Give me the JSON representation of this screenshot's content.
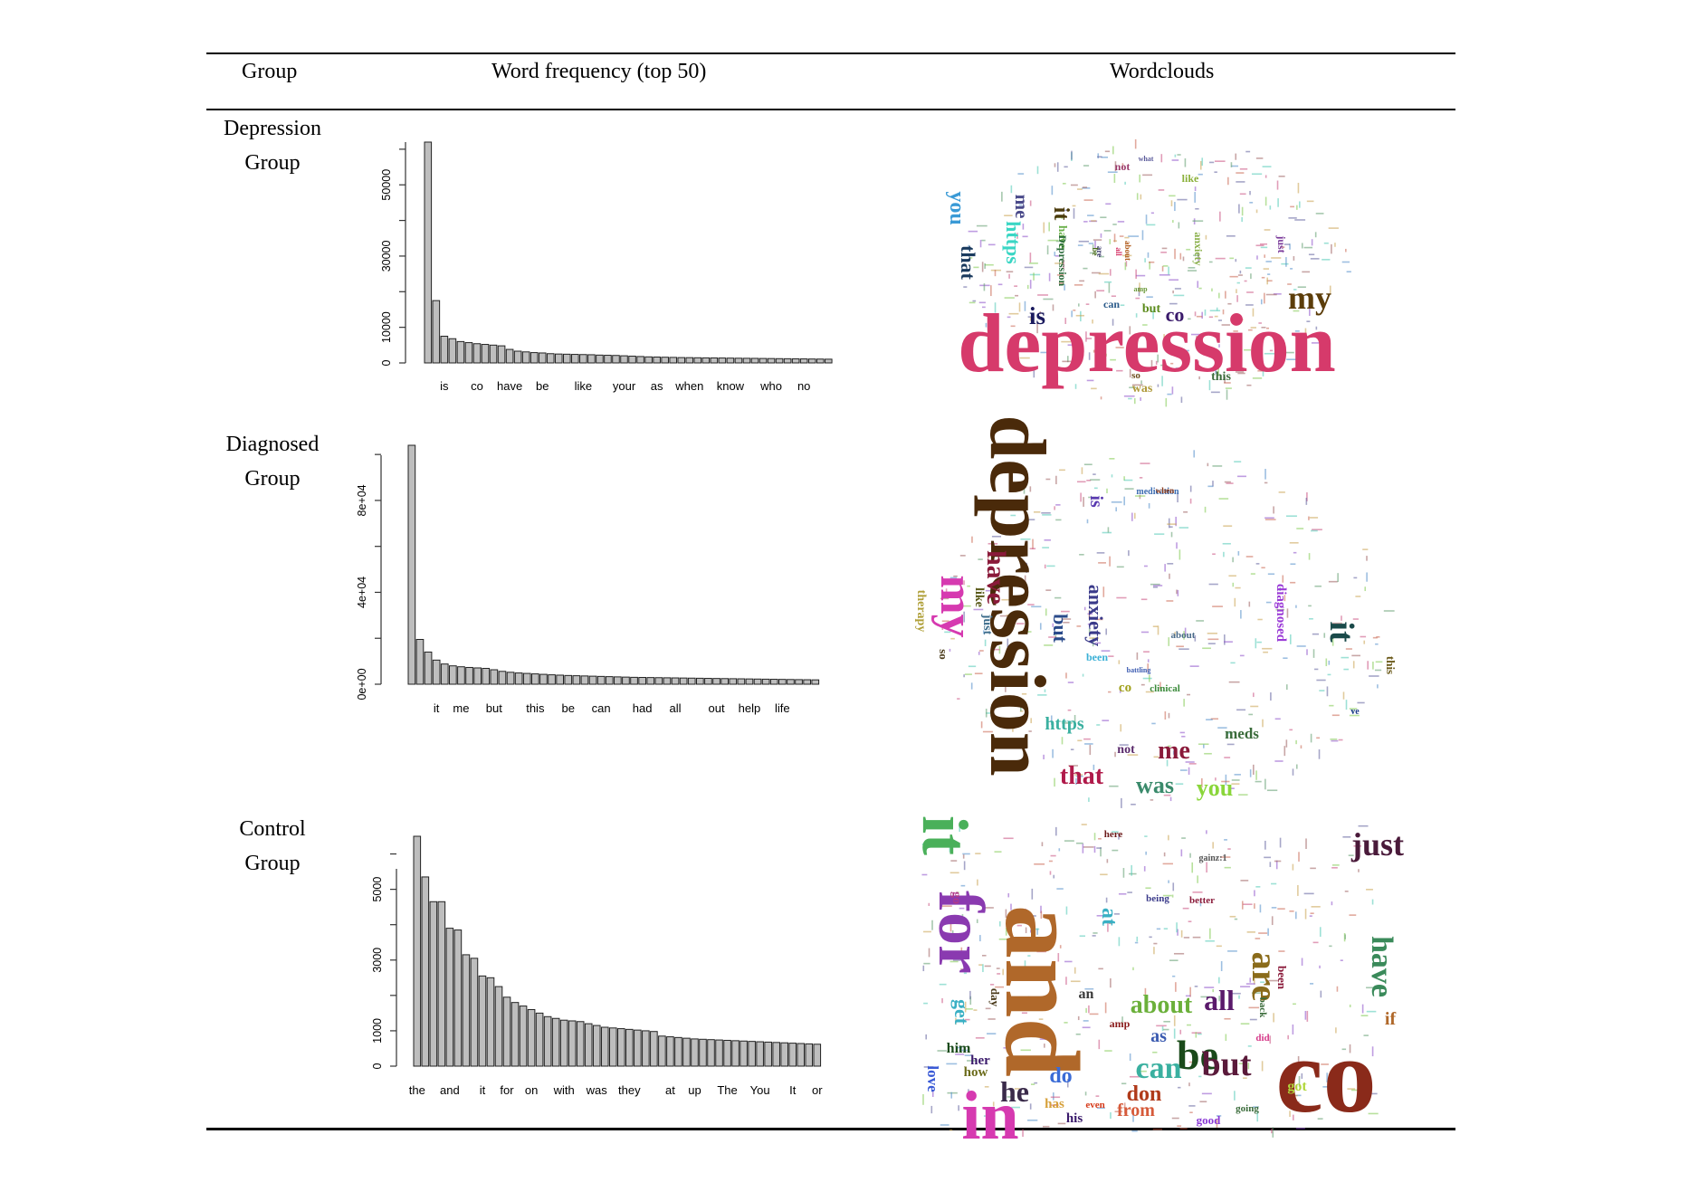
{
  "table": {
    "headers": {
      "group": "Group",
      "freq": "Word frequency (top 50)",
      "cloud": "Wordclouds"
    },
    "rows": [
      {
        "group_line1": "Depression",
        "group_line2": "Group"
      },
      {
        "group_line1": "Diagnosed",
        "group_line2": "Group"
      },
      {
        "group_line1": "Control",
        "group_line2": "Group"
      }
    ]
  },
  "chart_data": [
    {
      "type": "bar",
      "title": "",
      "xlabel": "",
      "ylabel": "",
      "ylim": [
        0,
        62000
      ],
      "yticks": [
        0,
        10000,
        30000,
        50000
      ],
      "ytick_labels": [
        "0",
        "10000",
        "30000",
        "50000"
      ],
      "xtick_labels": [
        {
          "index": 2,
          "label": "is"
        },
        {
          "index": 6,
          "label": "co"
        },
        {
          "index": 10,
          "label": "have"
        },
        {
          "index": 14,
          "label": "be"
        },
        {
          "index": 19,
          "label": "like"
        },
        {
          "index": 24,
          "label": "your"
        },
        {
          "index": 28,
          "label": "as"
        },
        {
          "index": 32,
          "label": "when"
        },
        {
          "index": 37,
          "label": "know"
        },
        {
          "index": 42,
          "label": "who"
        },
        {
          "index": 46,
          "label": "no"
        }
      ],
      "values": [
        62000,
        17500,
        7500,
        6800,
        6000,
        5700,
        5400,
        5200,
        5000,
        4800,
        3800,
        3300,
        3100,
        2900,
        2800,
        2600,
        2500,
        2450,
        2400,
        2350,
        2300,
        2200,
        2150,
        2100,
        2000,
        1900,
        1800,
        1700,
        1650,
        1600,
        1550,
        1500,
        1480,
        1450,
        1420,
        1400,
        1380,
        1350,
        1320,
        1300,
        1280,
        1250,
        1230,
        1200,
        1180,
        1150,
        1130,
        1100,
        1080,
        1050
      ]
    },
    {
      "type": "bar",
      "title": "",
      "xlabel": "",
      "ylabel": "",
      "ylim": [
        0,
        104000
      ],
      "yticks": [
        0,
        40000,
        80000
      ],
      "ytick_labels": [
        "0e+00",
        "4e+04",
        "8e+04"
      ],
      "xtick_labels": [
        {
          "index": 3,
          "label": "it"
        },
        {
          "index": 6,
          "label": "me"
        },
        {
          "index": 10,
          "label": "but"
        },
        {
          "index": 15,
          "label": "this"
        },
        {
          "index": 19,
          "label": "be"
        },
        {
          "index": 23,
          "label": "can"
        },
        {
          "index": 28,
          "label": "had"
        },
        {
          "index": 32,
          "label": "all"
        },
        {
          "index": 37,
          "label": "out"
        },
        {
          "index": 41,
          "label": "help"
        },
        {
          "index": 45,
          "label": "life"
        }
      ],
      "values": [
        104000,
        19500,
        14000,
        10500,
        8800,
        8000,
        7600,
        7300,
        7100,
        6900,
        6300,
        5600,
        5200,
        4900,
        4700,
        4500,
        4300,
        4100,
        3950,
        3800,
        3700,
        3600,
        3500,
        3400,
        3300,
        3200,
        3100,
        3000,
        2950,
        2900,
        2850,
        2800,
        2750,
        2700,
        2650,
        2600,
        2550,
        2500,
        2450,
        2400,
        2350,
        2300,
        2250,
        2200,
        2150,
        2100,
        2050,
        2000,
        1950,
        1900
      ]
    },
    {
      "type": "bar",
      "title": "",
      "xlabel": "",
      "ylabel": "",
      "ylim": [
        0,
        6500
      ],
      "yticks": [
        0,
        1000,
        3000,
        5000
      ],
      "ytick_labels": [
        "0",
        "1000",
        "3000",
        "5000"
      ],
      "xtick_labels": [
        {
          "index": 0,
          "label": "the"
        },
        {
          "index": 4,
          "label": "and"
        },
        {
          "index": 8,
          "label": "it"
        },
        {
          "index": 11,
          "label": "for"
        },
        {
          "index": 14,
          "label": "on"
        },
        {
          "index": 18,
          "label": "with"
        },
        {
          "index": 22,
          "label": "was"
        },
        {
          "index": 26,
          "label": "they"
        },
        {
          "index": 31,
          "label": "at"
        },
        {
          "index": 34,
          "label": "up"
        },
        {
          "index": 38,
          "label": "The"
        },
        {
          "index": 42,
          "label": "You"
        },
        {
          "index": 46,
          "label": "It"
        },
        {
          "index": 49,
          "label": "or"
        }
      ],
      "values": [
        6500,
        5350,
        4650,
        4650,
        3900,
        3850,
        3150,
        3050,
        2550,
        2500,
        2250,
        1950,
        1800,
        1700,
        1600,
        1500,
        1400,
        1350,
        1300,
        1280,
        1260,
        1200,
        1150,
        1100,
        1080,
        1060,
        1040,
        1020,
        1000,
        980,
        850,
        830,
        810,
        790,
        770,
        760,
        750,
        740,
        730,
        720,
        710,
        700,
        690,
        680,
        670,
        660,
        650,
        640,
        630,
        620
      ]
    }
  ],
  "wordclouds": [
    {
      "words": [
        {
          "text": "depression",
          "color": "#d63a6b"
        },
        {
          "text": "my",
          "color": "#5c3d0a"
        },
        {
          "text": "is",
          "color": "#1a1a5e"
        },
        {
          "text": "co",
          "color": "#3a1a6b"
        },
        {
          "text": "it",
          "color": "#4a3a0a"
        },
        {
          "text": "you",
          "color": "#3a9ad6"
        },
        {
          "text": "that",
          "color": "#1a3a5e"
        },
        {
          "text": "me",
          "color": "#4a4a8a"
        },
        {
          "text": "https",
          "color": "#3ad6c4"
        },
        {
          "text": "have",
          "color": "#6ab04a"
        },
        {
          "text": "Depression",
          "color": "#2a6b3a"
        },
        {
          "text": "anxiety",
          "color": "#8ab04a"
        },
        {
          "text": "just",
          "color": "#7a3a9a"
        },
        {
          "text": "not",
          "color": "#9a3a6b"
        },
        {
          "text": "like",
          "color": "#8ab03a"
        },
        {
          "text": "but",
          "color": "#5a8a1a"
        },
        {
          "text": "can",
          "color": "#2a5a8a"
        },
        {
          "text": "this",
          "color": "#3a6b3a"
        },
        {
          "text": "was",
          "color": "#b09a3a"
        },
        {
          "text": "so",
          "color": "#6b4a1a"
        },
        {
          "text": "are",
          "color": "#3a3a6b"
        },
        {
          "text": "all",
          "color": "#d63a6b"
        },
        {
          "text": "about",
          "color": "#b05a1a"
        },
        {
          "text": "what",
          "color": "#5a5a9a"
        },
        {
          "text": "amp",
          "color": "#6b9a3a"
        },
        {
          "text": "be",
          "color": "#4a6b1a"
        }
      ]
    },
    {
      "words": [
        {
          "text": "depression",
          "color": "#4a2a0a"
        },
        {
          "text": "my",
          "color": "#d63ab0"
        },
        {
          "text": "it",
          "color": "#1a4a4a"
        },
        {
          "text": "have",
          "color": "#8a1a3a"
        },
        {
          "text": "anxiety",
          "color": "#3a3a8a"
        },
        {
          "text": "but",
          "color": "#2a4a8a"
        },
        {
          "text": "is",
          "color": "#5a3ab0"
        },
        {
          "text": "me",
          "color": "#8a1a3a"
        },
        {
          "text": "that",
          "color": "#b01a4a"
        },
        {
          "text": "was",
          "color": "#3a8a6b"
        },
        {
          "text": "you",
          "color": "#8ad63a"
        },
        {
          "text": "https",
          "color": "#3ab0a0"
        },
        {
          "text": "meds",
          "color": "#3a6b3a"
        },
        {
          "text": "diagnosed",
          "color": "#9a3ad6"
        },
        {
          "text": "therapy",
          "color": "#b0a03a"
        },
        {
          "text": "like",
          "color": "#5a5a1a"
        },
        {
          "text": "just",
          "color": "#3a6b8a"
        },
        {
          "text": "so",
          "color": "#4a3a1a"
        },
        {
          "text": "been",
          "color": "#3ab0d6"
        },
        {
          "text": "about",
          "color": "#4a6b8a"
        },
        {
          "text": "co",
          "color": "#a0a01a"
        },
        {
          "text": "clinical",
          "color": "#3a8a3a"
        },
        {
          "text": "medication",
          "color": "#3a6bb0"
        },
        {
          "text": "not",
          "color": "#5a2a6b"
        },
        {
          "text": "this",
          "color": "#6b5a1a"
        },
        {
          "text": "when",
          "color": "#8a3a1a"
        },
        {
          "text": "battling",
          "color": "#3a5ab0"
        },
        {
          "text": "ve",
          "color": "#1a3a8a"
        }
      ]
    },
    {
      "words": [
        {
          "text": "and",
          "color": "#b0682a"
        },
        {
          "text": "co",
          "color": "#8a2a1a"
        },
        {
          "text": "it",
          "color": "#4ab05a"
        },
        {
          "text": "for",
          "color": "#8a3ab0"
        },
        {
          "text": "in",
          "color": "#d63ab0"
        },
        {
          "text": "just",
          "color": "#4a1a3a"
        },
        {
          "text": "have",
          "color": "#3a8a5a"
        },
        {
          "text": "are",
          "color": "#8a6b1a"
        },
        {
          "text": "be",
          "color": "#1a4a1a"
        },
        {
          "text": "can",
          "color": "#3ab0a0"
        },
        {
          "text": "but",
          "color": "#5a1a3a"
        },
        {
          "text": "all",
          "color": "#5a1a6b"
        },
        {
          "text": "about",
          "color": "#6bb03a"
        },
        {
          "text": "he",
          "color": "#3a2a4a"
        },
        {
          "text": "do",
          "color": "#3a6bd6"
        },
        {
          "text": "don",
          "color": "#b03a1a"
        },
        {
          "text": "from",
          "color": "#d65a3a"
        },
        {
          "text": "as",
          "color": "#3a5ab0"
        },
        {
          "text": "at",
          "color": "#3ab0c4"
        },
        {
          "text": "if",
          "color": "#b0682a"
        },
        {
          "text": "get",
          "color": "#3ab0c4"
        },
        {
          "text": "him",
          "color": "#1a4a1a"
        },
        {
          "text": "her",
          "color": "#3a1a6b"
        },
        {
          "text": "how",
          "color": "#6b6b1a"
        },
        {
          "text": "love",
          "color": "#3a5ad6"
        },
        {
          "text": "got",
          "color": "#b0d63a"
        },
        {
          "text": "has",
          "color": "#d6a03a"
        },
        {
          "text": "good",
          "color": "#8a3ad6"
        },
        {
          "text": "his",
          "color": "#3a1a6b"
        },
        {
          "text": "an",
          "color": "#3a3a3a"
        },
        {
          "text": "go",
          "color": "#b03a8a"
        },
        {
          "text": "been",
          "color": "#8a1a3a"
        },
        {
          "text": "back",
          "color": "#3a6b3a"
        },
        {
          "text": "day",
          "color": "#4a3a1a"
        },
        {
          "text": "did",
          "color": "#d63a8a"
        },
        {
          "text": "amp",
          "color": "#8a1a1a"
        },
        {
          "text": "here",
          "color": "#6b1a1a"
        },
        {
          "text": "being",
          "color": "#3a3a8a"
        },
        {
          "text": "better",
          "color": "#8a1a3a"
        },
        {
          "text": "even",
          "color": "#d63a1a"
        },
        {
          "text": "going",
          "color": "#3a6b3a"
        },
        {
          "text": "gainz:1",
          "color": "#555555"
        }
      ]
    }
  ]
}
